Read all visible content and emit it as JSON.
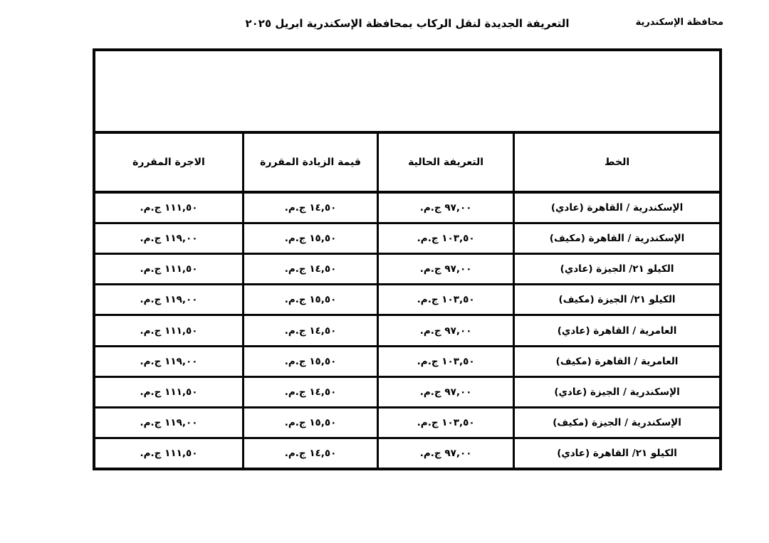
{
  "header": {
    "governorate": "محافظة الإسكندرية",
    "title": "التعريفة الجديدة لنقل الركاب بمحافظة الإسكندرية ابريل ٢٠٢٥"
  },
  "table": {
    "columns": [
      "الخط",
      "التعريفة الحالية",
      "قيمة الزيادة المقررة",
      "الاجرة المقررة"
    ],
    "rows": [
      [
        "الإسكندرية / القاهرة (عادي)",
        "٩٧,٠٠ ج.م.",
        "١٤,٥٠ ج.م.",
        "١١١,٥٠ ج.م."
      ],
      [
        "الإسكندرية / القاهرة (مكيف)",
        "١٠٣,٥٠ ج.م.",
        "١٥,٥٠ ج.م.",
        "١١٩,٠٠ ج.م."
      ],
      [
        "الكيلو ٢١/ الجيزة (عادي)",
        "٩٧,٠٠ ج.م.",
        "١٤,٥٠ ج.م.",
        "١١١,٥٠ ج.م."
      ],
      [
        "الكيلو ٢١/ الجيزة (مكيف)",
        "١٠٣,٥٠ ج.م.",
        "١٥,٥٠ ج.م.",
        "١١٩,٠٠ ج.م."
      ],
      [
        "العامرية / القاهرة (عادي)",
        "٩٧,٠٠ ج.م.",
        "١٤,٥٠ ج.م.",
        "١١١,٥٠ ج.م."
      ],
      [
        "العامرية / القاهرة (مكيف)",
        "١٠٣,٥٠ ج.م.",
        "١٥,٥٠ ج.م.",
        "١١٩,٠٠ ج.م."
      ],
      [
        "الإسكندرية / الجيزة (عادي)",
        "٩٧,٠٠ ج.م.",
        "١٤,٥٠ ج.م.",
        "١١١,٥٠ ج.م."
      ],
      [
        "الإسكندرية / الجيزة (مكيف)",
        "١٠٣,٥٠ ج.م.",
        "١٥,٥٠ ج.م.",
        "١١٩,٠٠ ج.م."
      ],
      [
        "الكيلو ٢١/ القاهرة (عادي)",
        "٩٧,٠٠ ج.م.",
        "١٤,٥٠ ج.م.",
        "١١١,٥٠ ج.م."
      ]
    ]
  }
}
